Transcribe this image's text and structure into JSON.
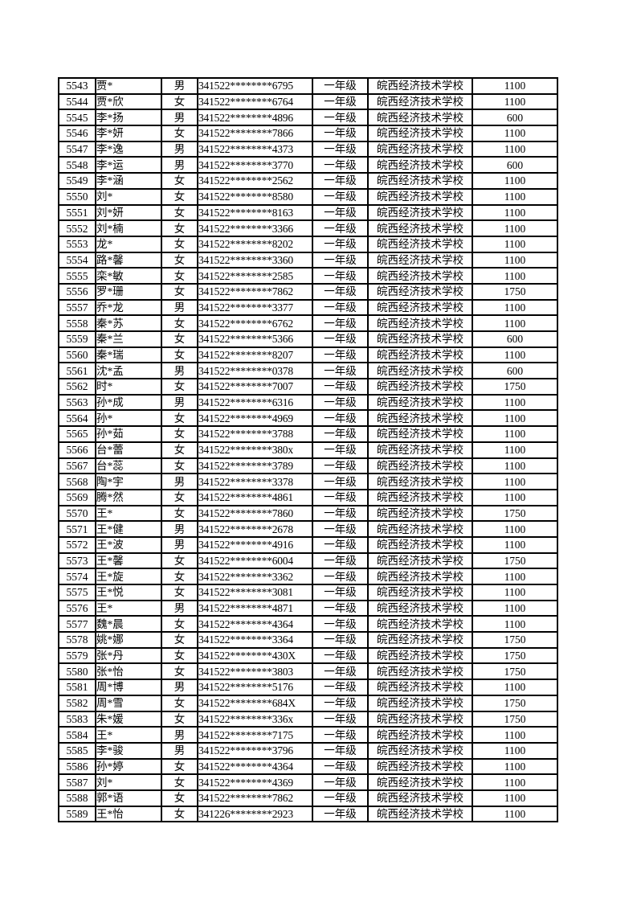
{
  "page": {
    "background_color": "#ffffff",
    "border_color": "#000000",
    "text_color": "#000000"
  },
  "table": {
    "columns": [
      {
        "name": "serial-number",
        "align": "center"
      },
      {
        "name": "student-name",
        "align": "left"
      },
      {
        "name": "gender",
        "align": "center"
      },
      {
        "name": "id-card-masked",
        "align": "left"
      },
      {
        "name": "grade",
        "align": "center"
      },
      {
        "name": "school",
        "align": "center"
      },
      {
        "name": "subsidy-amount",
        "align": "center"
      }
    ],
    "rows": [
      [
        "5543",
        "贾*",
        "男",
        "341522********6795",
        "一年级",
        "皖西经济技术学校",
        "1100"
      ],
      [
        "5544",
        "贾*欣",
        "女",
        "341522********6764",
        "一年级",
        "皖西经济技术学校",
        "1100"
      ],
      [
        "5545",
        "李*扬",
        "男",
        "341522********4896",
        "一年级",
        "皖西经济技术学校",
        "600"
      ],
      [
        "5546",
        "李*妍",
        "女",
        "341522********7866",
        "一年级",
        "皖西经济技术学校",
        "1100"
      ],
      [
        "5547",
        "李*逸",
        "男",
        "341522********4373",
        "一年级",
        "皖西经济技术学校",
        "1100"
      ],
      [
        "5548",
        "李*运",
        "男",
        "341522********3770",
        "一年级",
        "皖西经济技术学校",
        "600"
      ],
      [
        "5549",
        "李*涵",
        "女",
        "341522********2562",
        "一年级",
        "皖西经济技术学校",
        "1100"
      ],
      [
        "5550",
        "刘*",
        "女",
        "341522********8580",
        "一年级",
        "皖西经济技术学校",
        "1100"
      ],
      [
        "5551",
        "刘*妍",
        "女",
        "341522********8163",
        "一年级",
        "皖西经济技术学校",
        "1100"
      ],
      [
        "5552",
        "刘*楠",
        "女",
        "341522********3366",
        "一年级",
        "皖西经济技术学校",
        "1100"
      ],
      [
        "5553",
        "龙*",
        "女",
        "341522********8202",
        "一年级",
        "皖西经济技术学校",
        "1100"
      ],
      [
        "5554",
        "路*馨",
        "女",
        "341522********3360",
        "一年级",
        "皖西经济技术学校",
        "1100"
      ],
      [
        "5555",
        "栾*敏",
        "女",
        "341522********2585",
        "一年级",
        "皖西经济技术学校",
        "1100"
      ],
      [
        "5556",
        "罗*珊",
        "女",
        "341522********7862",
        "一年级",
        "皖西经济技术学校",
        "1750"
      ],
      [
        "5557",
        "乔*龙",
        "男",
        "341522********3377",
        "一年级",
        "皖西经济技术学校",
        "1100"
      ],
      [
        "5558",
        "秦*苏",
        "女",
        "341522********6762",
        "一年级",
        "皖西经济技术学校",
        "1100"
      ],
      [
        "5559",
        "秦*兰",
        "女",
        "341522********5366",
        "一年级",
        "皖西经济技术学校",
        "600"
      ],
      [
        "5560",
        "秦*瑞",
        "女",
        "341522********8207",
        "一年级",
        "皖西经济技术学校",
        "1100"
      ],
      [
        "5561",
        "沈*孟",
        "男",
        "341522********0378",
        "一年级",
        "皖西经济技术学校",
        "600"
      ],
      [
        "5562",
        "时*",
        "女",
        "341522********7007",
        "一年级",
        "皖西经济技术学校",
        "1750"
      ],
      [
        "5563",
        "孙*成",
        "男",
        "341522********6316",
        "一年级",
        "皖西经济技术学校",
        "1100"
      ],
      [
        "5564",
        "孙*",
        "女",
        "341522********4969",
        "一年级",
        "皖西经济技术学校",
        "1100"
      ],
      [
        "5565",
        "孙*茹",
        "女",
        "341522********3788",
        "一年级",
        "皖西经济技术学校",
        "1100"
      ],
      [
        "5566",
        "台*蕾",
        "女",
        "341522********380x",
        "一年级",
        "皖西经济技术学校",
        "1100"
      ],
      [
        "5567",
        "台*蕊",
        "女",
        "341522********3789",
        "一年级",
        "皖西经济技术学校",
        "1100"
      ],
      [
        "5568",
        "陶*宇",
        "男",
        "341522********3378",
        "一年级",
        "皖西经济技术学校",
        "1100"
      ],
      [
        "5569",
        "腾*然",
        "女",
        "341522********4861",
        "一年级",
        "皖西经济技术学校",
        "1100"
      ],
      [
        "5570",
        "王*",
        "女",
        "341522********7860",
        "一年级",
        "皖西经济技术学校",
        "1750"
      ],
      [
        "5571",
        "王*健",
        "男",
        "341522********2678",
        "一年级",
        "皖西经济技术学校",
        "1100"
      ],
      [
        "5572",
        "王*波",
        "男",
        "341522********4916",
        "一年级",
        "皖西经济技术学校",
        "1100"
      ],
      [
        "5573",
        "王*馨",
        "女",
        "341522********6004",
        "一年级",
        "皖西经济技术学校",
        "1750"
      ],
      [
        "5574",
        "王*旋",
        "女",
        "341522********3362",
        "一年级",
        "皖西经济技术学校",
        "1100"
      ],
      [
        "5575",
        "王*悦",
        "女",
        "341522********3081",
        "一年级",
        "皖西经济技术学校",
        "1100"
      ],
      [
        "5576",
        "王*",
        "男",
        "341522********4871",
        "一年级",
        "皖西经济技术学校",
        "1100"
      ],
      [
        "5577",
        "魏*晨",
        "女",
        "341522********4364",
        "一年级",
        "皖西经济技术学校",
        "1100"
      ],
      [
        "5578",
        "姚*娜",
        "女",
        "341522********3364",
        "一年级",
        "皖西经济技术学校",
        "1750"
      ],
      [
        "5579",
        "张*丹",
        "女",
        "341522********430X",
        "一年级",
        "皖西经济技术学校",
        "1750"
      ],
      [
        "5580",
        "张*怡",
        "女",
        "341522********3803",
        "一年级",
        "皖西经济技术学校",
        "1750"
      ],
      [
        "5581",
        "周*博",
        "男",
        "341522********5176",
        "一年级",
        "皖西经济技术学校",
        "1100"
      ],
      [
        "5582",
        "周*雪",
        "女",
        "341522********684X",
        "一年级",
        "皖西经济技术学校",
        "1750"
      ],
      [
        "5583",
        "朱*媛",
        "女",
        "341522********336x",
        "一年级",
        "皖西经济技术学校",
        "1750"
      ],
      [
        "5584",
        "王*",
        "男",
        "341522********7175",
        "一年级",
        "皖西经济技术学校",
        "1100"
      ],
      [
        "5585",
        "李*骏",
        "男",
        "341522********3796",
        "一年级",
        "皖西经济技术学校",
        "1100"
      ],
      [
        "5586",
        "孙*婷",
        "女",
        "341522********4364",
        "一年级",
        "皖西经济技术学校",
        "1100"
      ],
      [
        "5587",
        "刘*",
        "女",
        "341522********4369",
        "一年级",
        "皖西经济技术学校",
        "1100"
      ],
      [
        "5588",
        "郭*语",
        "女",
        "341522********7862",
        "一年级",
        "皖西经济技术学校",
        "1100"
      ],
      [
        "5589",
        "王*怡",
        "女",
        "341226********2923",
        "一年级",
        "皖西经济技术学校",
        "1100"
      ]
    ]
  }
}
